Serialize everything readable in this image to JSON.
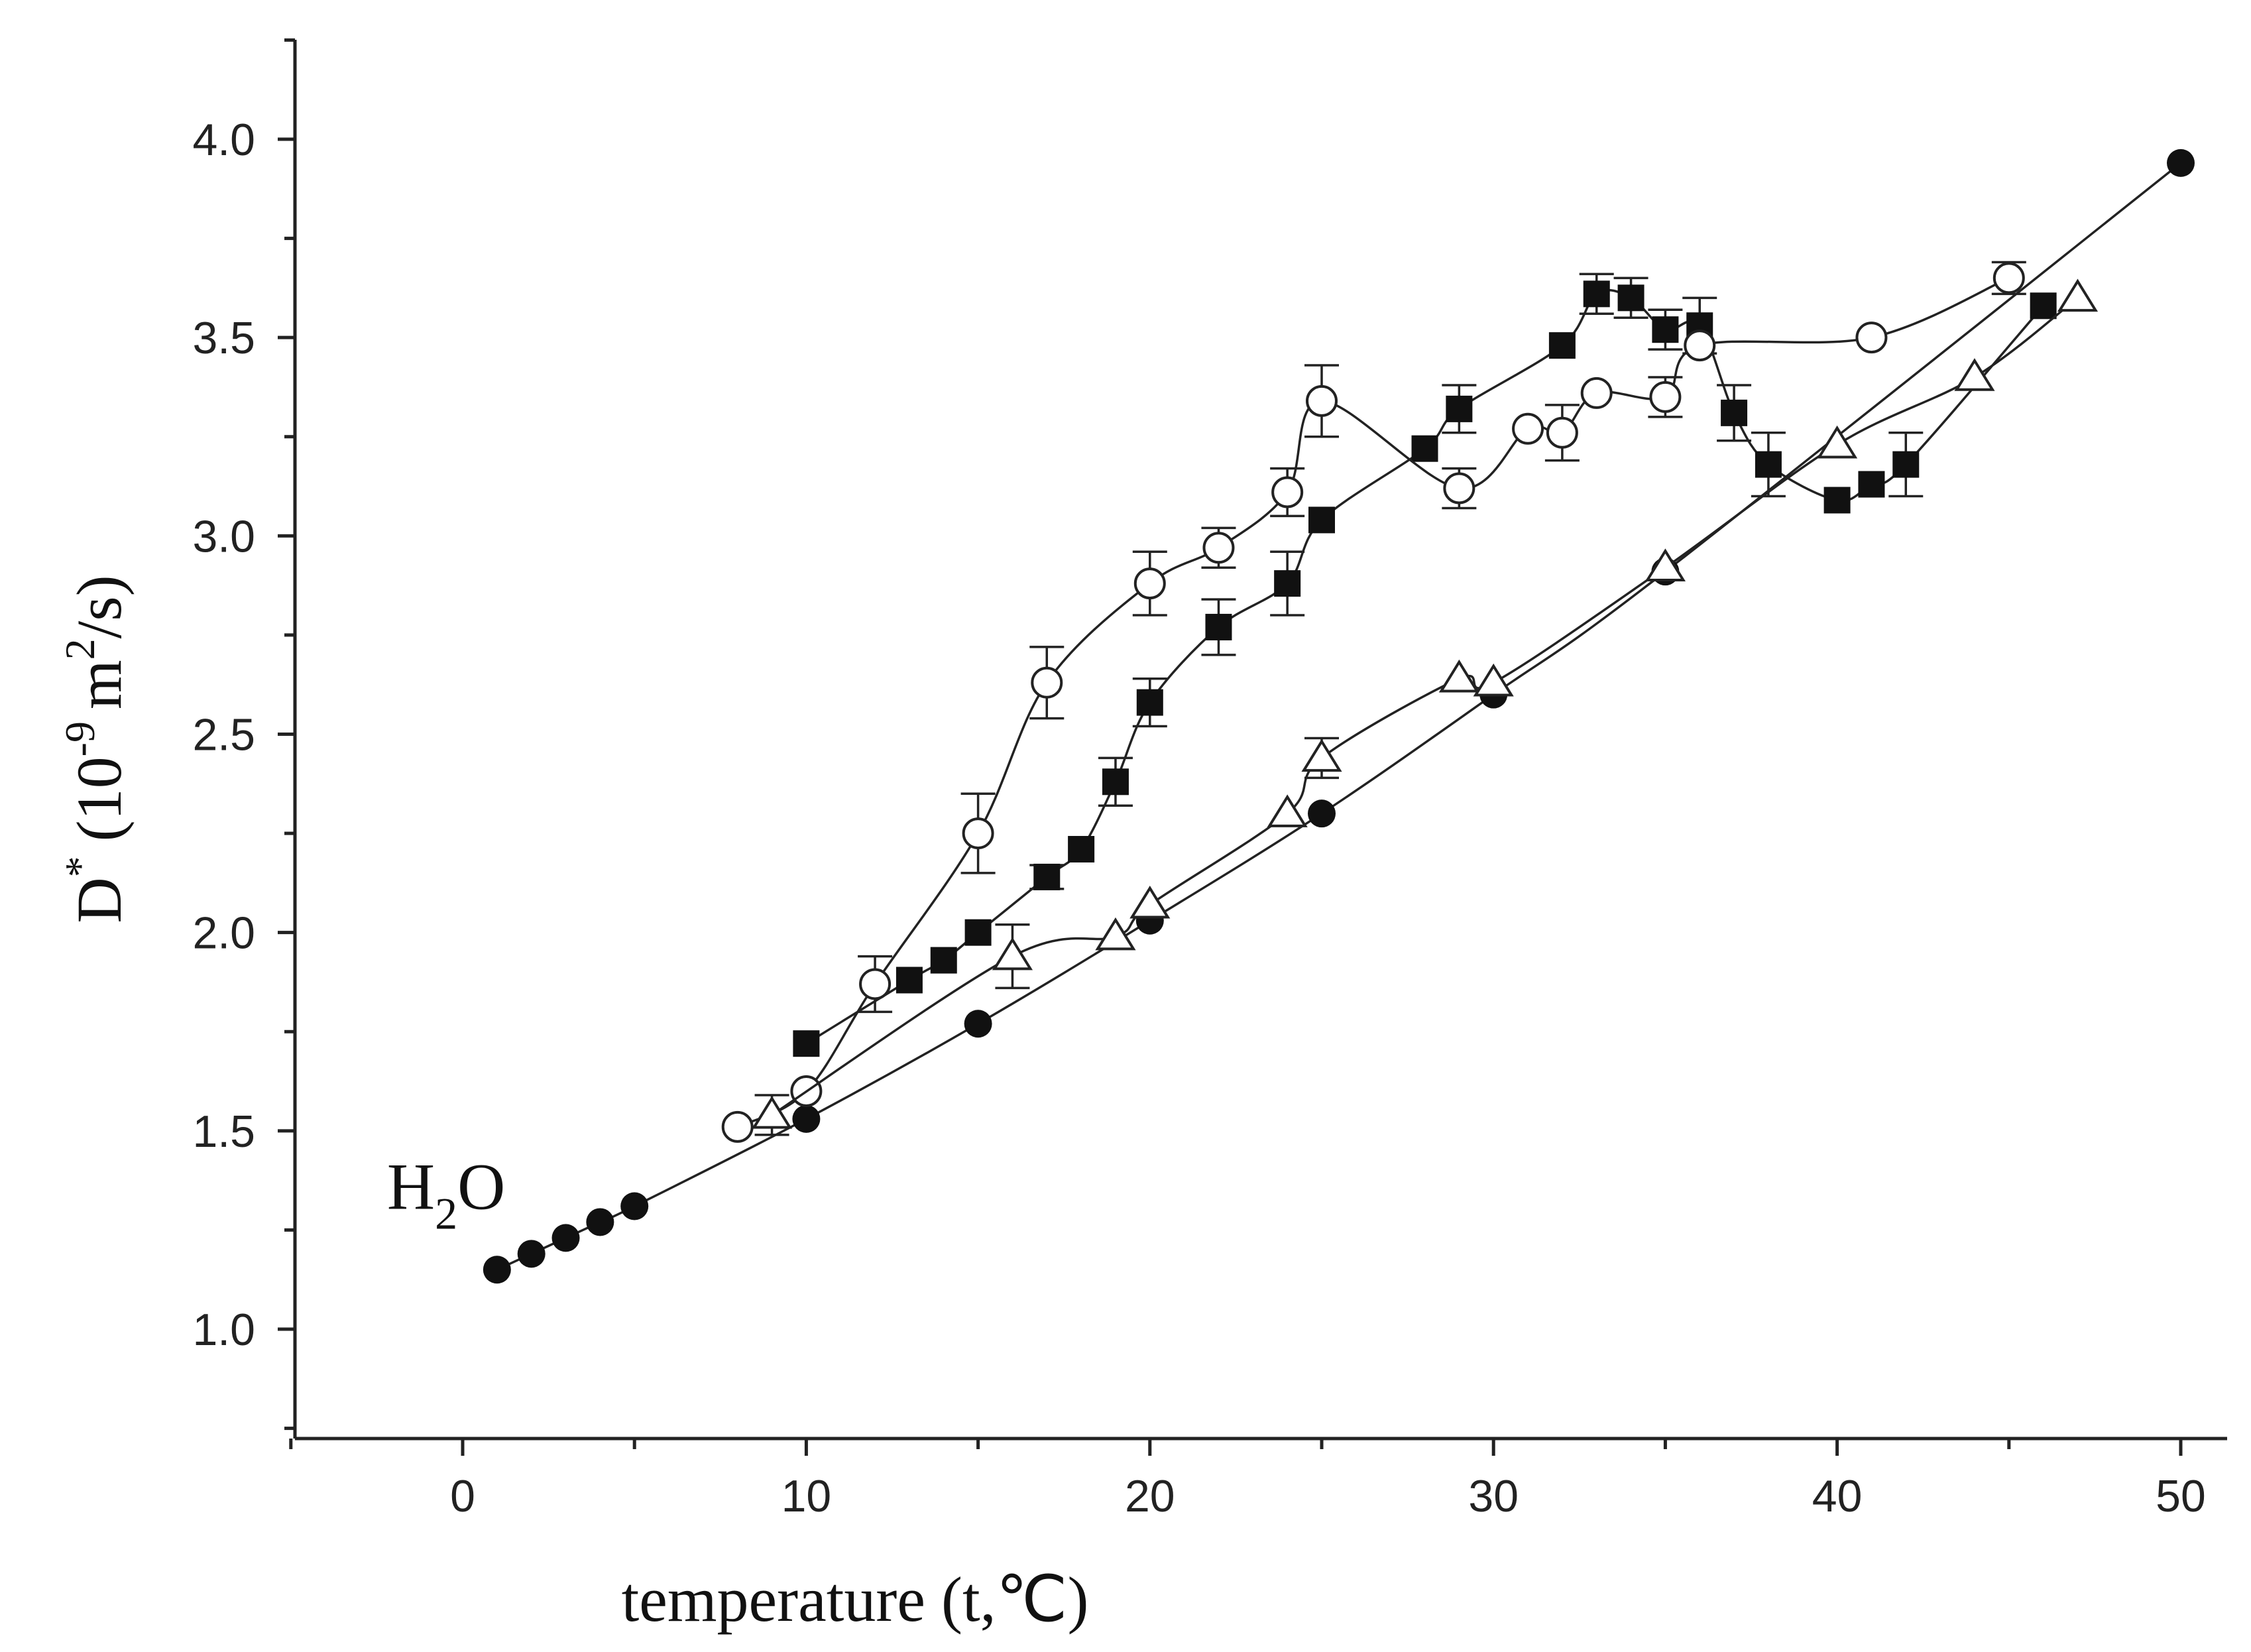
{
  "chart_data": {
    "type": "line",
    "title": "",
    "xlabel": "temperature (t,℃)",
    "ylabel_parts": {
      "symbol": "D",
      "sup": "*",
      "pre": "(10",
      "exp": "-9",
      "unit": "m",
      "unit_exp": "2",
      "post": "/s)"
    },
    "xlim": [
      -5,
      52
    ],
    "ylim": [
      0.75,
      4.25
    ],
    "x_ticks": [
      0,
      10,
      20,
      30,
      40,
      50
    ],
    "x_tick_labels": [
      "0",
      "10",
      "20",
      "30",
      "40",
      "50"
    ],
    "y_ticks": [
      1.0,
      1.5,
      2.0,
      2.5,
      3.0,
      3.5,
      4.0
    ],
    "y_tick_labels": [
      "1.0",
      "1.5",
      "2.0",
      "2.5",
      "3.0",
      "3.5",
      "4.0"
    ],
    "annotation": {
      "main": "H",
      "sub": "2",
      "tail": "O",
      "x": 0.5,
      "y": 1.27
    },
    "series": [
      {
        "name": "H2O",
        "marker": "filled-circle",
        "points": [
          [
            1,
            1.15
          ],
          [
            2,
            1.19
          ],
          [
            3,
            1.23
          ],
          [
            4,
            1.27
          ],
          [
            5,
            1.31
          ],
          [
            10,
            1.53
          ],
          [
            15,
            1.77
          ],
          [
            20,
            2.03
          ],
          [
            25,
            2.3
          ],
          [
            30,
            2.6
          ],
          [
            35,
            2.91
          ],
          [
            50,
            3.94
          ]
        ]
      },
      {
        "name": "filled-square",
        "marker": "filled-square",
        "points": [
          [
            10,
            1.72,
            0
          ],
          [
            13,
            1.88,
            0
          ],
          [
            14,
            1.93,
            0
          ],
          [
            15,
            2.0,
            0
          ],
          [
            17,
            2.14,
            0.03
          ],
          [
            18,
            2.21,
            0
          ],
          [
            19,
            2.38,
            0.06
          ],
          [
            20,
            2.58,
            0.06
          ],
          [
            22,
            2.77,
            0.07
          ],
          [
            24,
            2.88,
            0.08
          ],
          [
            25,
            3.04,
            0
          ],
          [
            28,
            3.22,
            0
          ],
          [
            29,
            3.32,
            0.06
          ],
          [
            32,
            3.48,
            0
          ],
          [
            33,
            3.61,
            0.05
          ],
          [
            34,
            3.6,
            0.05
          ],
          [
            35,
            3.52,
            0.05
          ],
          [
            36,
            3.53,
            0.07
          ],
          [
            37,
            3.31,
            0.07
          ],
          [
            38,
            3.18,
            0.08
          ],
          [
            40,
            3.09,
            0
          ],
          [
            41,
            3.13,
            0
          ],
          [
            42,
            3.18,
            0.08
          ],
          [
            46,
            3.58,
            0
          ]
        ]
      },
      {
        "name": "open-circle",
        "marker": "open-circle",
        "points": [
          [
            8,
            1.51,
            0
          ],
          [
            10,
            1.6,
            0
          ],
          [
            12,
            1.87,
            0.07
          ],
          [
            15,
            2.25,
            0.1
          ],
          [
            17,
            2.63,
            0.09
          ],
          [
            20,
            2.88,
            0.08
          ],
          [
            22,
            2.97,
            0.05
          ],
          [
            24,
            3.11,
            0.06
          ],
          [
            25,
            3.34,
            0.09
          ],
          [
            29,
            3.12,
            0.05
          ],
          [
            31,
            3.27,
            0
          ],
          [
            32,
            3.26,
            0.07
          ],
          [
            33,
            3.36,
            0
          ],
          [
            35,
            3.35,
            0.05
          ],
          [
            36,
            3.48,
            0
          ],
          [
            41,
            3.5,
            0
          ],
          [
            45,
            3.65,
            0.04
          ]
        ]
      },
      {
        "name": "open-triangle",
        "marker": "open-triangle",
        "points": [
          [
            9,
            1.54,
            0.05
          ],
          [
            16,
            1.94,
            0.08
          ],
          [
            19,
            1.99,
            0
          ],
          [
            20,
            2.07,
            0
          ],
          [
            24,
            2.3,
            0
          ],
          [
            25,
            2.44,
            0.05
          ],
          [
            29,
            2.64,
            0
          ],
          [
            30,
            2.63,
            0
          ],
          [
            35,
            2.92,
            0
          ],
          [
            40,
            3.23,
            0
          ],
          [
            44,
            3.4,
            0
          ],
          [
            47,
            3.6,
            0
          ]
        ]
      }
    ]
  }
}
